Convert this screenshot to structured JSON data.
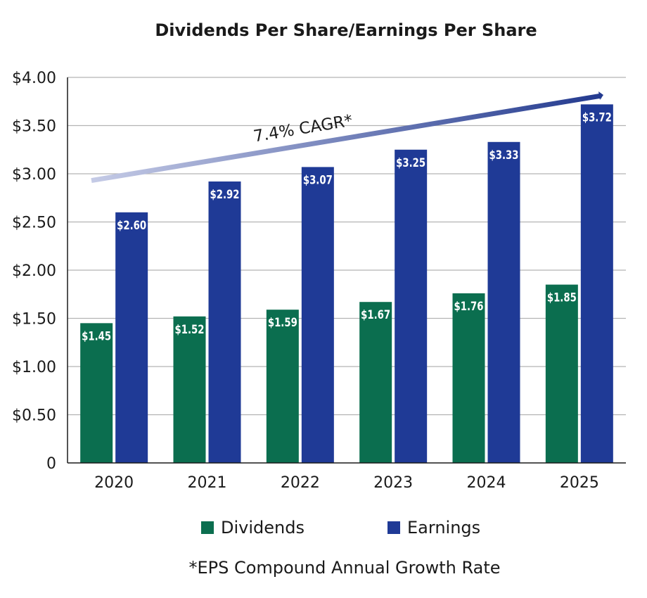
{
  "chart_data": {
    "type": "bar",
    "title": "Dividends Per Share/Earnings Per Share",
    "categories": [
      "2020",
      "2021",
      "2022",
      "2023",
      "2024",
      "2025"
    ],
    "series": [
      {
        "name": "Dividends",
        "color": "#0b6e4f",
        "values": [
          1.45,
          1.52,
          1.59,
          1.67,
          1.76,
          1.85
        ],
        "labels": [
          "$1.45",
          "$1.52",
          "$1.59",
          "$1.67",
          "$1.76",
          "$1.85"
        ]
      },
      {
        "name": "Earnings",
        "color": "#1f3a96",
        "values": [
          2.6,
          2.92,
          3.07,
          3.25,
          3.33,
          3.72
        ],
        "labels": [
          "$2.60",
          "$2.92",
          "$3.07",
          "$3.25",
          "$3.33",
          "$3.72"
        ]
      }
    ],
    "ylim": [
      0,
      4.0
    ],
    "yticks": [
      0,
      0.5,
      1.0,
      1.5,
      2.0,
      2.5,
      3.0,
      3.5,
      4.0
    ],
    "ytick_labels": [
      "0",
      "$0.50",
      "$1.00",
      "$1.50",
      "$2.00",
      "$2.50",
      "$3.00",
      "$3.50",
      "$4.00"
    ],
    "grid": true,
    "legend_position": "bottom",
    "trend": {
      "label": "7.4% CAGR*",
      "start": 2.93,
      "end": 3.81,
      "color_start": "#c5cbe6",
      "color_end": "#233a8f"
    },
    "footnote": "*EPS Compound Annual Growth Rate"
  }
}
